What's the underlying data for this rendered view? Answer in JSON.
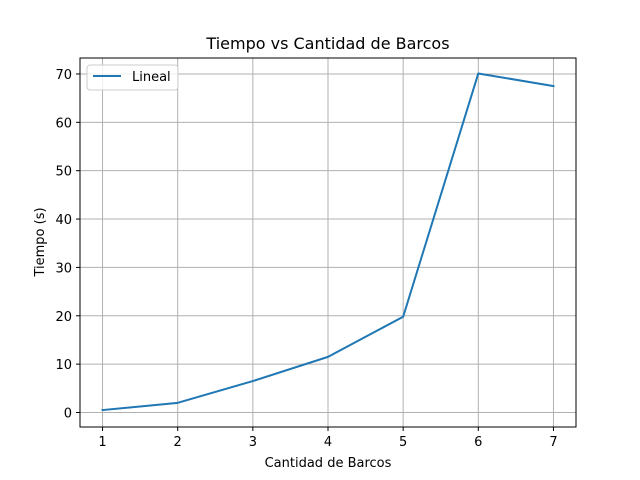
{
  "chart_data": {
    "type": "line",
    "title": "Tiempo vs Cantidad de Barcos",
    "xlabel": "Cantidad de Barcos",
    "ylabel": "Tiempo (s)",
    "x": [
      1,
      2,
      3,
      4,
      5,
      6,
      7
    ],
    "xticks": [
      "1",
      "2",
      "3",
      "4",
      "5",
      "6",
      "7"
    ],
    "yticks": [
      "0",
      "10",
      "20",
      "30",
      "40",
      "50",
      "60",
      "70"
    ],
    "xlim": [
      0.7,
      7.3
    ],
    "ylim": [
      -3,
      73.3
    ],
    "grid": true,
    "legend_position": "upper-left",
    "series": [
      {
        "name": "Lineal",
        "color": "#1f77b4",
        "values": [
          0.5,
          2.0,
          6.5,
          11.5,
          19.8,
          70.1,
          67.5
        ]
      }
    ]
  }
}
